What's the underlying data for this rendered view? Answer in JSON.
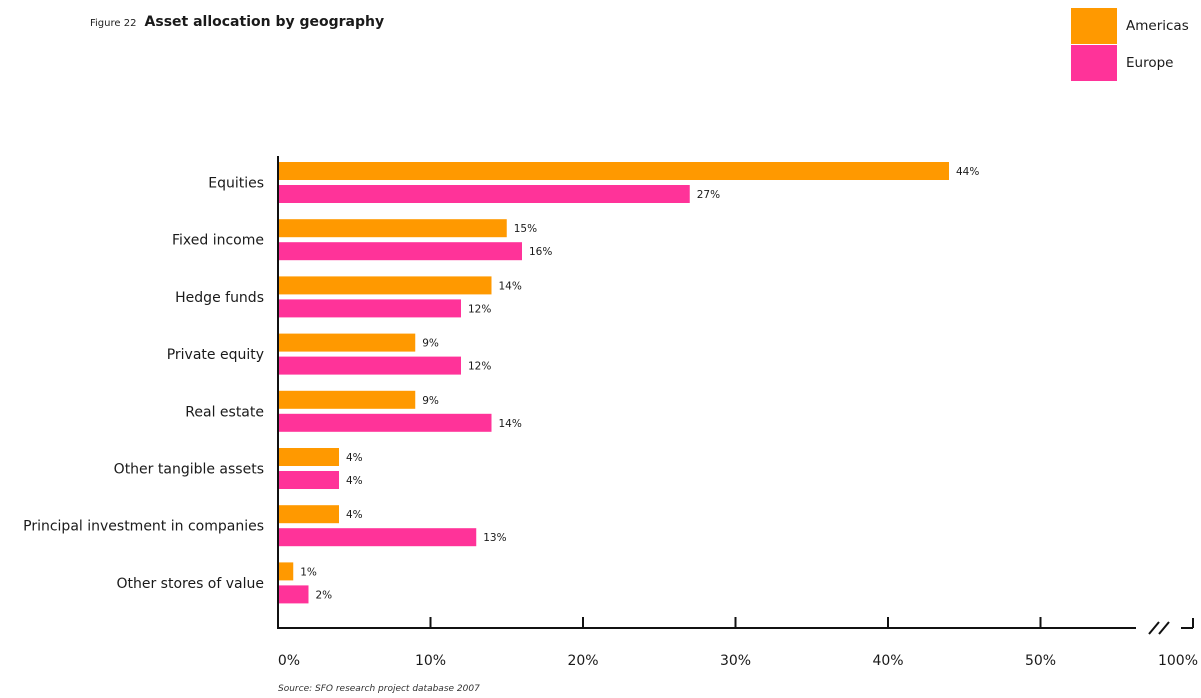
{
  "figure": {
    "number": "Figure 22",
    "title": "Asset allocation by geography",
    "source": "Source: SFO research project database 2007"
  },
  "legend": [
    {
      "name": "Americas",
      "color": "#FF9900"
    },
    {
      "name": "Europe",
      "color": "#FF3399"
    }
  ],
  "chart_data": {
    "type": "bar",
    "orientation": "horizontal",
    "categories": [
      "Equities",
      "Fixed income",
      "Hedge funds",
      "Private equity",
      "Real estate",
      "Other tangible assets",
      "Principal investment in companies",
      "Other stores of value"
    ],
    "series": [
      {
        "name": "Americas",
        "color": "#FF9900",
        "values": [
          44,
          15,
          14,
          9,
          9,
          4,
          4,
          1
        ],
        "labels": [
          "44%",
          "15%",
          "14%",
          "9%",
          "9%",
          "4%",
          "4%",
          "1%"
        ]
      },
      {
        "name": "Europe",
        "color": "#FF3399",
        "values": [
          27,
          16,
          12,
          12,
          14,
          4,
          13,
          2
        ],
        "labels": [
          "27%",
          "16%",
          "12%",
          "12%",
          "14%",
          "4%",
          "13%",
          "2%"
        ]
      }
    ],
    "x_ticks": [
      0,
      10,
      20,
      30,
      40,
      50
    ],
    "x_tick_labels": [
      "0%",
      "10%",
      "20%",
      "30%",
      "40%",
      "50%"
    ],
    "x_break_label": "100%",
    "axis_break": true,
    "xlim": [
      0,
      57
    ],
    "grid": false,
    "legend_position": "top-right"
  }
}
